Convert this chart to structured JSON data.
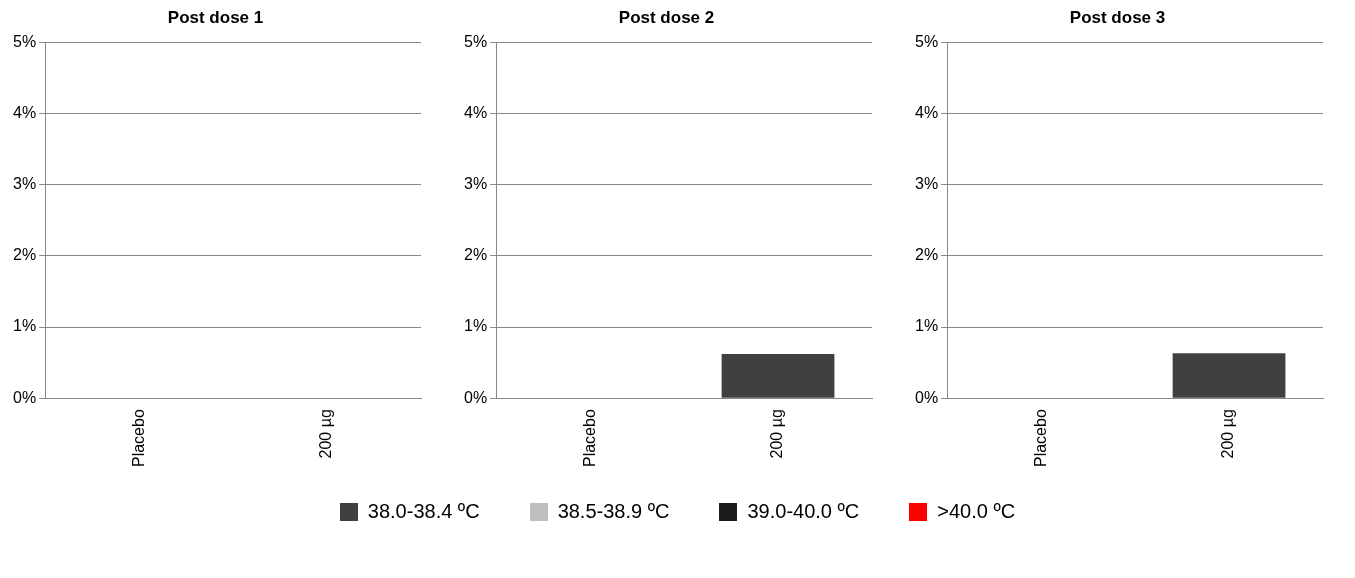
{
  "chart_data": [
    {
      "type": "bar",
      "title": "Post dose 1",
      "categories": [
        "Placebo",
        "200 µg"
      ],
      "stacked": true,
      "ylim": [
        0,
        5
      ],
      "yticks": [
        {
          "value": 0,
          "label": "0%"
        },
        {
          "value": 1,
          "label": "1%"
        },
        {
          "value": 2,
          "label": "2%"
        },
        {
          "value": 3,
          "label": "3%"
        },
        {
          "value": 4,
          "label": "4%"
        },
        {
          "value": 5,
          "label": "5%"
        }
      ],
      "grid": "y",
      "legend": "bottom",
      "series": [
        {
          "name": "38.0-38.4 ºC",
          "color": "#404040",
          "values": [
            0,
            0
          ]
        },
        {
          "name": "38.5-38.9 ºC",
          "color": "#bfbfbf",
          "values": [
            0,
            0
          ]
        },
        {
          "name": "39.0-40.0 ºC",
          "color": "#1a1a1a",
          "values": [
            0,
            0
          ]
        },
        {
          "name": ">40.0 ºC",
          "color": "#ff0000",
          "values": [
            0,
            0
          ]
        }
      ]
    },
    {
      "type": "bar",
      "title": "Post dose 2",
      "categories": [
        "Placebo",
        "200 µg"
      ],
      "stacked": true,
      "ylim": [
        0,
        5
      ],
      "yticks": [
        {
          "value": 0,
          "label": "0%"
        },
        {
          "value": 1,
          "label": "1%"
        },
        {
          "value": 2,
          "label": "2%"
        },
        {
          "value": 3,
          "label": "3%"
        },
        {
          "value": 4,
          "label": "4%"
        },
        {
          "value": 5,
          "label": "5%"
        }
      ],
      "grid": "y",
      "series": [
        {
          "color": "#404040",
          "values": [
            0,
            0.62
          ]
        },
        {
          "color": "#bfbfbf",
          "values": [
            0,
            0
          ]
        },
        {
          "color": "#1a1a1a",
          "values": [
            0,
            0
          ]
        },
        {
          "color": "#ff0000",
          "values": [
            0,
            0
          ]
        }
      ]
    },
    {
      "type": "bar",
      "title": "Post dose 3",
      "categories": [
        "Placebo",
        "200 µg"
      ],
      "stacked": true,
      "ylim": [
        0,
        5
      ],
      "yticks": [
        {
          "value": 0,
          "label": "0%"
        },
        {
          "value": 1,
          "label": "1%"
        },
        {
          "value": 2,
          "label": "2%"
        },
        {
          "value": 3,
          "label": "3%"
        },
        {
          "value": 4,
          "label": "4%"
        },
        {
          "value": 5,
          "label": "5%"
        }
      ],
      "grid": "y",
      "series": [
        {
          "color": "#404040",
          "values": [
            0,
            0.63
          ]
        },
        {
          "color": "#bfbfbf",
          "values": [
            0,
            0
          ]
        },
        {
          "color": "#1a1a1a",
          "values": [
            0,
            0
          ]
        },
        {
          "color": "#ff0000",
          "values": [
            0,
            0
          ]
        }
      ]
    }
  ]
}
